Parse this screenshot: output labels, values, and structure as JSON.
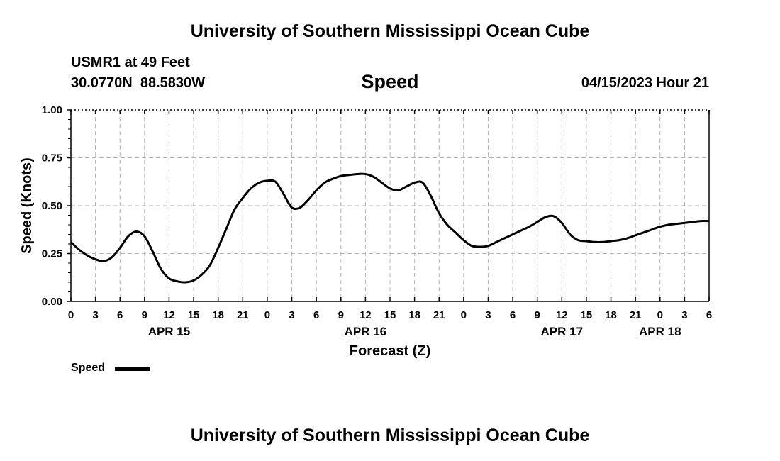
{
  "header": {
    "title": "University of Southern Mississippi Ocean Cube",
    "station": "USMR1 at 49 Feet",
    "coords": "30.0770N  88.5830W",
    "variable": "Speed",
    "timestamp": "04/15/2023 Hour 21"
  },
  "footer": {
    "title": "University of Southern Mississippi Ocean Cube"
  },
  "legend": {
    "label": "Speed",
    "color": "#000000"
  },
  "chart_data": {
    "type": "line",
    "title": "Speed",
    "xlabel": "Forecast (Z)",
    "ylabel": "Speed (Knots)",
    "ylim": [
      0,
      1.0
    ],
    "yticks": [
      "0.00",
      "0.25",
      "0.50",
      "0.75",
      "1.00"
    ],
    "xlim_hours": [
      0,
      78
    ],
    "xtick_labels": [
      "0",
      "3",
      "6",
      "9",
      "12",
      "15",
      "18",
      "21",
      "0",
      "3",
      "6",
      "9",
      "12",
      "15",
      "18",
      "21",
      "0",
      "3",
      "6",
      "9",
      "12",
      "15",
      "18",
      "21",
      "0",
      "3",
      "6"
    ],
    "date_labels": [
      {
        "label": "APR 15",
        "hour": 12
      },
      {
        "label": "APR 16",
        "hour": 36
      },
      {
        "label": "APR 17",
        "hour": 60
      },
      {
        "label": "APR 18",
        "hour": 72
      }
    ],
    "grid": true,
    "legend_position": "bottom-left",
    "series": [
      {
        "name": "Speed",
        "color": "#000000",
        "x": [
          0,
          1,
          2,
          3,
          4,
          5,
          6,
          7,
          8,
          9,
          10,
          11,
          12,
          13,
          14,
          15,
          16,
          17,
          18,
          19,
          20,
          21,
          22,
          23,
          24,
          25,
          26,
          27,
          28,
          29,
          30,
          31,
          32,
          33,
          34,
          35,
          36,
          37,
          38,
          39,
          40,
          41,
          42,
          43,
          44,
          45,
          46,
          47,
          48,
          49,
          50,
          51,
          52,
          53,
          54,
          55,
          56,
          57,
          58,
          59,
          60,
          61,
          62,
          63,
          64,
          65,
          66,
          67,
          68,
          69,
          70,
          71,
          72,
          73,
          74,
          75,
          76,
          77,
          78
        ],
        "values": [
          0.31,
          0.27,
          0.24,
          0.22,
          0.21,
          0.23,
          0.28,
          0.34,
          0.365,
          0.34,
          0.26,
          0.17,
          0.12,
          0.105,
          0.1,
          0.11,
          0.14,
          0.19,
          0.28,
          0.38,
          0.48,
          0.54,
          0.59,
          0.62,
          0.63,
          0.625,
          0.56,
          0.49,
          0.49,
          0.53,
          0.58,
          0.62,
          0.64,
          0.655,
          0.66,
          0.665,
          0.665,
          0.65,
          0.62,
          0.59,
          0.58,
          0.6,
          0.62,
          0.62,
          0.55,
          0.46,
          0.4,
          0.36,
          0.32,
          0.29,
          0.285,
          0.29,
          0.31,
          0.33,
          0.35,
          0.37,
          0.39,
          0.415,
          0.44,
          0.445,
          0.41,
          0.35,
          0.32,
          0.315,
          0.31,
          0.31,
          0.315,
          0.32,
          0.33,
          0.345,
          0.36,
          0.375,
          0.39,
          0.4,
          0.405,
          0.41,
          0.415,
          0.42,
          0.42
        ]
      }
    ]
  }
}
